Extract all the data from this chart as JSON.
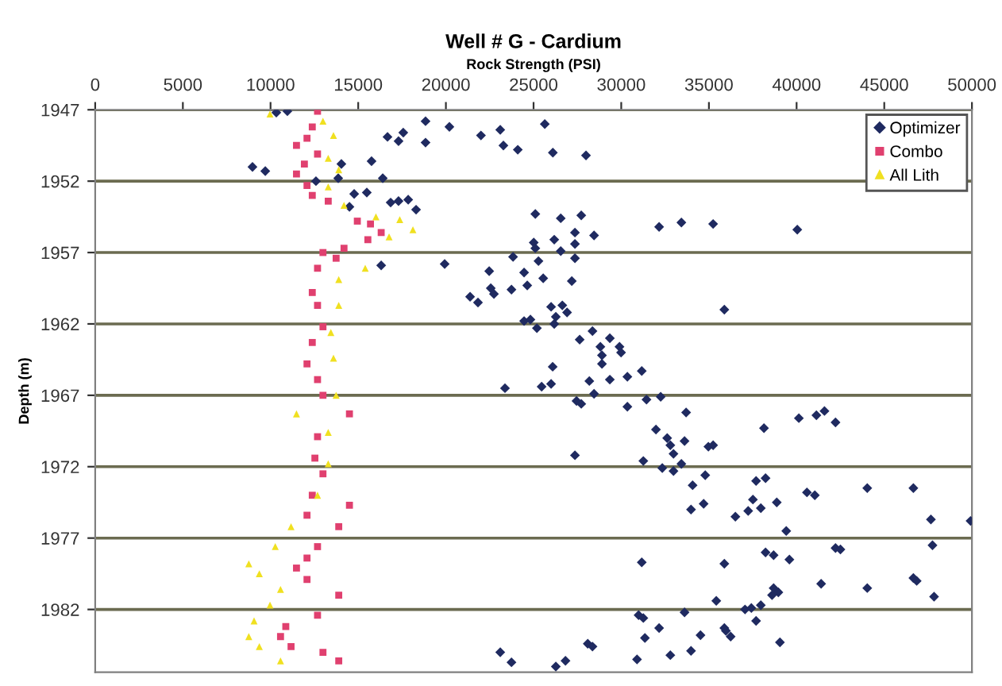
{
  "chart_data": {
    "type": "scatter",
    "title": "Well # G - Cardium",
    "xlabel": "Rock Strength (PSI)",
    "ylabel": "Depth (m)",
    "xlim": [
      0,
      50000
    ],
    "xticks": [
      0,
      5000,
      10000,
      15000,
      20000,
      25000,
      30000,
      35000,
      40000,
      45000,
      50000
    ],
    "ylim": [
      1986.4,
      1947
    ],
    "yticks": [
      1947,
      1952,
      1957,
      1962,
      1967,
      1972,
      1977,
      1982
    ],
    "grid": "y",
    "legend": "top right",
    "series": [
      {
        "name": "Optimizer",
        "color": "#1f2a60",
        "marker": "diamond",
        "x": [
          10330,
          10960,
          18840,
          20200,
          22000,
          23100,
          25640,
          16670,
          17570,
          17300,
          18840,
          23280,
          24100,
          26100,
          27990,
          15760,
          8970,
          9700,
          16400,
          14040,
          13860,
          12590,
          14770,
          15490,
          16850,
          17300,
          17850,
          18300,
          14500,
          16310,
          19930,
          23370,
          23100,
          23740,
          25100,
          26550,
          27720,
          26180,
          27360,
          27360,
          28450,
          25010,
          25100,
          26550,
          27360,
          23830,
          25280,
          22470,
          24460,
          25550,
          27180,
          22560,
          22740,
          23740,
          24640,
          21380,
          21830,
          32160,
          33430,
          35240,
          40040,
          35880,
          24460,
          24820,
          25190,
          26000,
          26270,
          26180,
          26640,
          26910,
          28360,
          27630,
          28810,
          28900,
          28900,
          29350,
          29900,
          29990,
          26090,
          28180,
          29350,
          30350,
          31170,
          25460,
          26000,
          27450,
          27720,
          28450,
          30350,
          31440,
          32250,
          33700,
          38140,
          40130,
          41130,
          41590,
          42220,
          27360,
          31980,
          32620,
          33610,
          32800,
          32980,
          31260,
          32340,
          32980,
          33430,
          34970,
          35240,
          34070,
          34790,
          37690,
          38230,
          33980,
          34700,
          36510,
          37240,
          37510,
          37960,
          38870,
          39410,
          40590,
          41040,
          44030,
          46660,
          47660,
          49920,
          47750,
          42220,
          42500,
          38230,
          38690,
          39590,
          31170,
          35880,
          41400,
          44030,
          46660,
          46850,
          47840,
          35420,
          37060,
          37420,
          37960,
          38600,
          38690,
          38960,
          37690,
          33610,
          30990,
          31260,
          32160,
          31350,
          34520,
          35880,
          35970,
          36240,
          39050,
          33980,
          32800,
          30900,
          28090,
          28360,
          26270,
          26820
        ],
        "values": [
          1947.2,
          1947.1,
          1947.8,
          1948.2,
          1948.8,
          1948.4,
          1948.0,
          1948.9,
          1948.6,
          1949.2,
          1949.3,
          1949.5,
          1949.8,
          1950.0,
          1950.2,
          1950.6,
          1951.0,
          1951.3,
          1951.8,
          1950.8,
          1951.8,
          1952.0,
          1952.9,
          1952.8,
          1953.5,
          1953.4,
          1953.3,
          1954.0,
          1953.8,
          1957.9,
          1957.8,
          1966.5,
          1985.0,
          1985.7,
          1954.3,
          1954.6,
          1954.4,
          1956.1,
          1955.6,
          1956.4,
          1955.8,
          1956.3,
          1956.7,
          1956.9,
          1957.4,
          1957.3,
          1957.6,
          1958.3,
          1958.4,
          1958.8,
          1959.0,
          1959.5,
          1959.9,
          1959.6,
          1959.3,
          1960.1,
          1960.5,
          1955.2,
          1954.9,
          1955.0,
          1955.4,
          1961.0,
          1961.8,
          1961.7,
          1962.3,
          1960.8,
          1961.5,
          1962.0,
          1960.7,
          1961.2,
          1962.5,
          1963.1,
          1963.6,
          1964.2,
          1964.8,
          1963.0,
          1963.6,
          1964.0,
          1965.0,
          1966.0,
          1965.9,
          1965.7,
          1965.3,
          1966.4,
          1966.2,
          1967.4,
          1967.6,
          1966.9,
          1967.8,
          1967.3,
          1967.1,
          1968.2,
          1969.3,
          1968.6,
          1968.4,
          1968.1,
          1968.9,
          1971.2,
          1969.4,
          1970.0,
          1970.2,
          1970.5,
          1971.1,
          1971.6,
          1972.1,
          1972.3,
          1971.8,
          1970.6,
          1970.5,
          1973.3,
          1972.6,
          1973.0,
          1972.8,
          1975.0,
          1974.6,
          1975.5,
          1975.1,
          1974.3,
          1974.9,
          1974.5,
          1976.5,
          1973.8,
          1974.0,
          1973.5,
          1973.5,
          1975.7,
          1975.8,
          1977.5,
          1977.7,
          1977.8,
          1978.0,
          1978.2,
          1978.5,
          1978.7,
          1978.8,
          1980.2,
          1980.5,
          1979.8,
          1980.0,
          1981.1,
          1981.4,
          1982.0,
          1981.9,
          1981.7,
          1981.0,
          1980.5,
          1980.8,
          1982.8,
          1982.2,
          1982.4,
          1982.6,
          1983.3,
          1984.0,
          1983.8,
          1983.3,
          1983.5,
          1983.9,
          1984.3,
          1984.9,
          1985.2,
          1985.5,
          1984.4,
          1984.6,
          1986.0,
          1985.6
        ]
      },
      {
        "name": "Combo",
        "color": "#e0406f",
        "marker": "square",
        "x": [
          12680,
          12380,
          12080,
          11480,
          12680,
          11930,
          11480,
          12080,
          12380,
          13290,
          14950,
          15700,
          16310,
          15550,
          14190,
          12990,
          13740,
          12680,
          12380,
          12680,
          12990,
          12380,
          12080,
          12680,
          12990,
          14500,
          12680,
          12530,
          12990,
          12380,
          14500,
          12080,
          13890,
          12680,
          12080,
          11480,
          12080,
          13890,
          12680,
          10870,
          10570,
          11170,
          12990,
          13890
        ],
        "values": [
          1947.1,
          1948.2,
          1949.0,
          1949.5,
          1950.1,
          1950.8,
          1951.5,
          1952.3,
          1953.0,
          1953.4,
          1954.8,
          1955.0,
          1955.6,
          1956.1,
          1956.7,
          1957.0,
          1957.4,
          1958.1,
          1959.8,
          1960.7,
          1962.2,
          1963.3,
          1964.8,
          1965.9,
          1967.0,
          1968.3,
          1969.9,
          1971.4,
          1972.5,
          1974.0,
          1974.7,
          1975.4,
          1976.2,
          1977.6,
          1978.4,
          1979.1,
          1979.9,
          1981.0,
          1982.4,
          1983.2,
          1983.9,
          1984.6,
          1985.0,
          1985.6
        ]
      },
      {
        "name": "All Lith",
        "color": "#f0e020",
        "marker": "triangle",
        "x": [
          9970,
          12990,
          13590,
          13290,
          13890,
          13290,
          14190,
          16010,
          17370,
          18120,
          16760,
          15400,
          13890,
          13890,
          13440,
          13590,
          13740,
          11480,
          13290,
          13290,
          12680,
          11170,
          10270,
          8760,
          9360,
          10570,
          9970,
          9060,
          8760,
          9360,
          10570
        ],
        "values": [
          1947.3,
          1947.8,
          1948.8,
          1950.4,
          1951.2,
          1952.4,
          1953.7,
          1954.5,
          1954.7,
          1955.4,
          1955.9,
          1958.1,
          1958.9,
          1960.7,
          1962.6,
          1964.4,
          1967.0,
          1968.3,
          1969.6,
          1971.8,
          1974.0,
          1976.2,
          1977.6,
          1978.8,
          1979.5,
          1980.6,
          1981.7,
          1982.8,
          1983.9,
          1984.6,
          1985.6
        ]
      }
    ]
  }
}
